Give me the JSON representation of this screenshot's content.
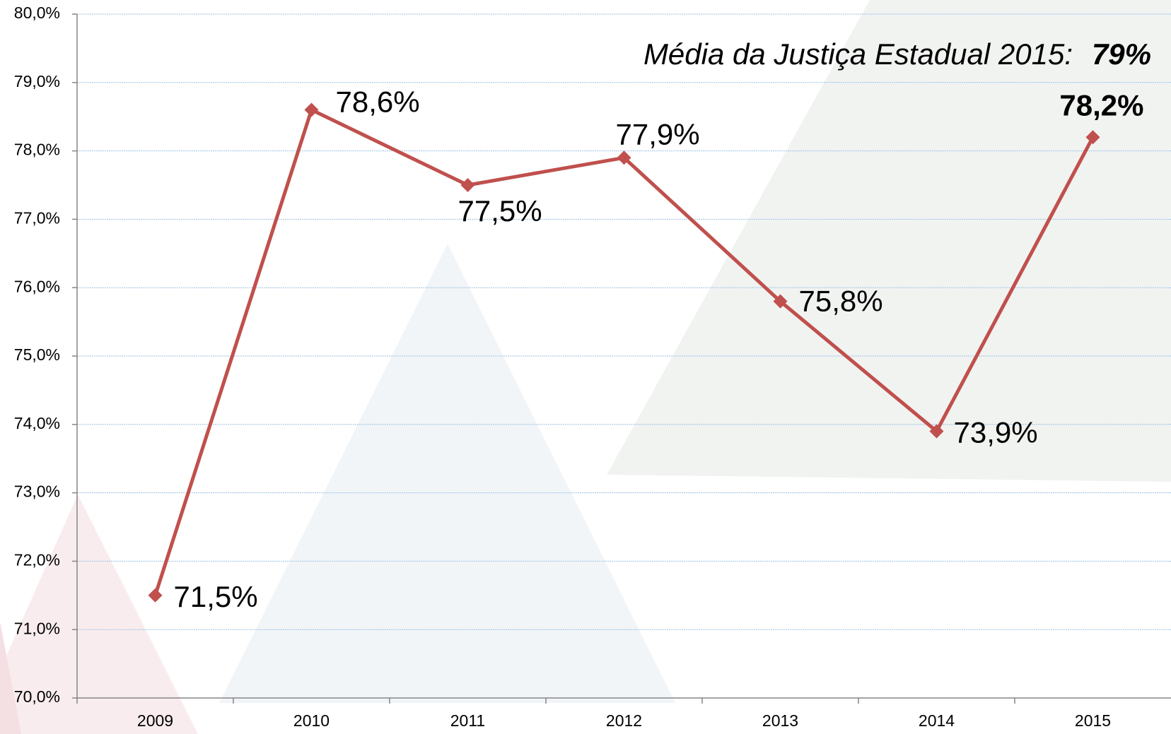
{
  "chart_data": {
    "type": "line",
    "annotation": {
      "text": "Média da Justiça Estadual 2015:",
      "value_label": "79%"
    },
    "categories": [
      "2009",
      "2010",
      "2011",
      "2012",
      "2013",
      "2014",
      "2015"
    ],
    "series": [
      {
        "color": "#c0504d",
        "values": [
          71.5,
          78.6,
          77.5,
          77.9,
          75.8,
          73.9,
          78.2
        ],
        "value_labels": [
          "71,5%",
          "78,6%",
          "77,5%",
          "77,9%",
          "75,8%",
          "73,9%",
          "78,2%"
        ]
      }
    ],
    "ylim": [
      70,
      80
    ],
    "yticks": [
      {
        "value": 70,
        "label": "70,0%"
      },
      {
        "value": 71,
        "label": "71,0%"
      },
      {
        "value": 72,
        "label": "72,0%"
      },
      {
        "value": 73,
        "label": "73,0%"
      },
      {
        "value": 74,
        "label": "74,0%"
      },
      {
        "value": 75,
        "label": "75,0%"
      },
      {
        "value": 76,
        "label": "76,0%"
      },
      {
        "value": 77,
        "label": "77,0%"
      },
      {
        "value": 78,
        "label": "78,0%"
      },
      {
        "value": 79,
        "label": "79,0%"
      },
      {
        "value": 80,
        "label": "80,0%"
      }
    ],
    "grid": true
  }
}
